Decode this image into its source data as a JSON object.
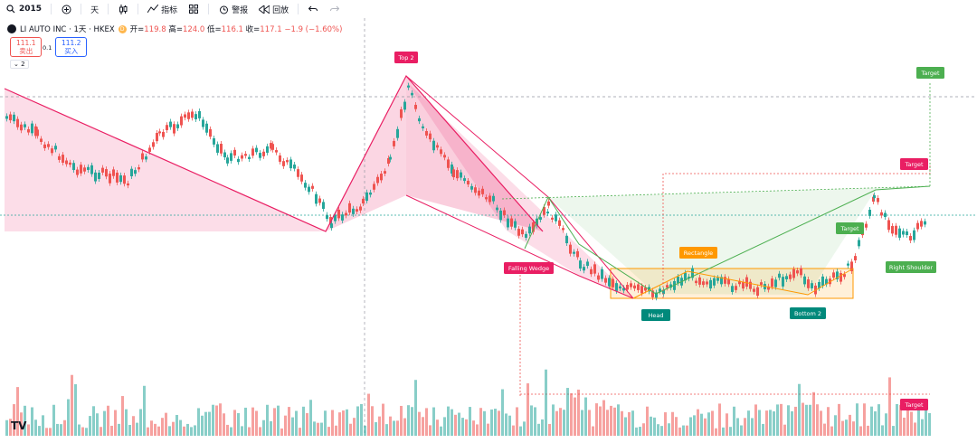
{
  "toolbar": {
    "symbol_search": "2015",
    "interval": "天",
    "indicators": "指标",
    "alerts": "警报",
    "replay": "回放"
  },
  "legend": {
    "title": "LI AUTO INC · 1天 · HKEX",
    "badge": "D",
    "open_label": "开=",
    "open": "119.8",
    "high_label": "高=",
    "high": "124.0",
    "low_label": "低=",
    "low": "116.1",
    "close_label": "收=",
    "close": "117.1",
    "change": "−1.9 (−1.60%)"
  },
  "trade": {
    "sell_price": "111.1",
    "sell_label": "卖出",
    "spread": "0.1",
    "buy_price": "111.2",
    "buy_label": "买入",
    "collapse": "2"
  },
  "patterns": {
    "top2": "Top 2",
    "falling_wedge": "Falling Wedge",
    "rectangle": "Rectangle",
    "head": "Head",
    "bottom2": "Bottom 2",
    "right_shoulder": "Right Shoulder",
    "target": "Target"
  },
  "colors": {
    "up": "#26a69a",
    "down": "#ef5350",
    "pink": "#e91e63",
    "green": "#4caf50",
    "orange": "#ff9800",
    "teal": "#00897b"
  }
}
